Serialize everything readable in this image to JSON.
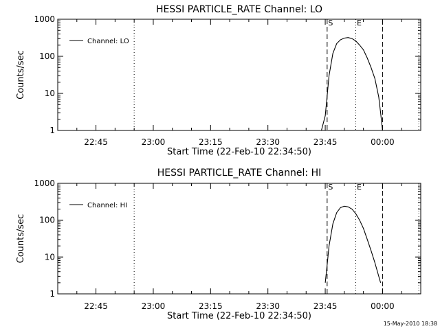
{
  "footer_timestamp": "15-May-2010 18:38",
  "chart_data": [
    {
      "type": "line",
      "title": "HESSI PARTICLE_RATE Channel: LO",
      "xlabel": "Start Time (22-Feb-10 22:34:50)",
      "ylabel": "Counts/sec",
      "y_scale": "log",
      "ylim": [
        1,
        1000
      ],
      "y_ticks": [
        "1",
        "10",
        "100",
        "1000"
      ],
      "x_range": [
        "22:35",
        "00:10"
      ],
      "x_ticks": [
        "22:45",
        "23:00",
        "23:15",
        "23:30",
        "23:45",
        "00:00"
      ],
      "legend": {
        "placement": "top-left",
        "entries": [
          "Channel: LO"
        ]
      },
      "series": [
        {
          "name": "Channel: LO",
          "x": [
            "23:44",
            "23:45",
            "23:46",
            "23:47",
            "23:48",
            "23:49",
            "23:50",
            "23:51",
            "23:52",
            "23:53",
            "23:54",
            "23:55",
            "23:56",
            "23:57",
            "23:58",
            "23:59",
            "23:59:30",
            "00:00"
          ],
          "values": [
            1,
            2.5,
            30,
            120,
            220,
            280,
            310,
            320,
            300,
            260,
            200,
            150,
            90,
            50,
            25,
            8,
            3,
            1
          ]
        }
      ],
      "vertical_lines": [
        {
          "x": "22:55",
          "style": "dotted",
          "label": ""
        },
        {
          "x": "23:45:30",
          "style": "dashed",
          "label": "S"
        },
        {
          "x": "23:53",
          "style": "dotted",
          "label": "E"
        },
        {
          "x": "00:00",
          "style": "dashed",
          "label": ""
        },
        {
          "x": "00:09:30",
          "style": "dotted",
          "label": ""
        }
      ]
    },
    {
      "type": "line",
      "title": "HESSI PARTICLE_RATE Channel: HI",
      "xlabel": "Start Time (22-Feb-10 22:34:50)",
      "ylabel": "Counts/sec",
      "y_scale": "log",
      "ylim": [
        1,
        1000
      ],
      "y_ticks": [
        "1",
        "10",
        "100",
        "1000"
      ],
      "x_range": [
        "22:35",
        "00:10"
      ],
      "x_ticks": [
        "22:45",
        "23:00",
        "23:15",
        "23:30",
        "23:45",
        "00:00"
      ],
      "legend": {
        "placement": "top-left",
        "entries": [
          "Channel: HI"
        ]
      },
      "series": [
        {
          "name": "Channel: HI",
          "x": [
            "23:45",
            "23:45:30",
            "23:46",
            "23:47",
            "23:48",
            "23:49",
            "23:50",
            "23:51",
            "23:52",
            "23:53",
            "23:54",
            "23:55",
            "23:56",
            "23:57",
            "23:58",
            "23:59",
            "23:59:30"
          ],
          "values": [
            2,
            6,
            20,
            80,
            160,
            220,
            240,
            230,
            200,
            150,
            100,
            60,
            30,
            15,
            7,
            3,
            2
          ]
        }
      ],
      "vertical_lines": [
        {
          "x": "22:55",
          "style": "dotted",
          "label": ""
        },
        {
          "x": "23:45:30",
          "style": "dashed",
          "label": "S"
        },
        {
          "x": "23:53",
          "style": "dotted",
          "label": "E"
        },
        {
          "x": "00:00",
          "style": "dashed",
          "label": ""
        },
        {
          "x": "00:09:30",
          "style": "dotted",
          "label": ""
        }
      ]
    }
  ]
}
